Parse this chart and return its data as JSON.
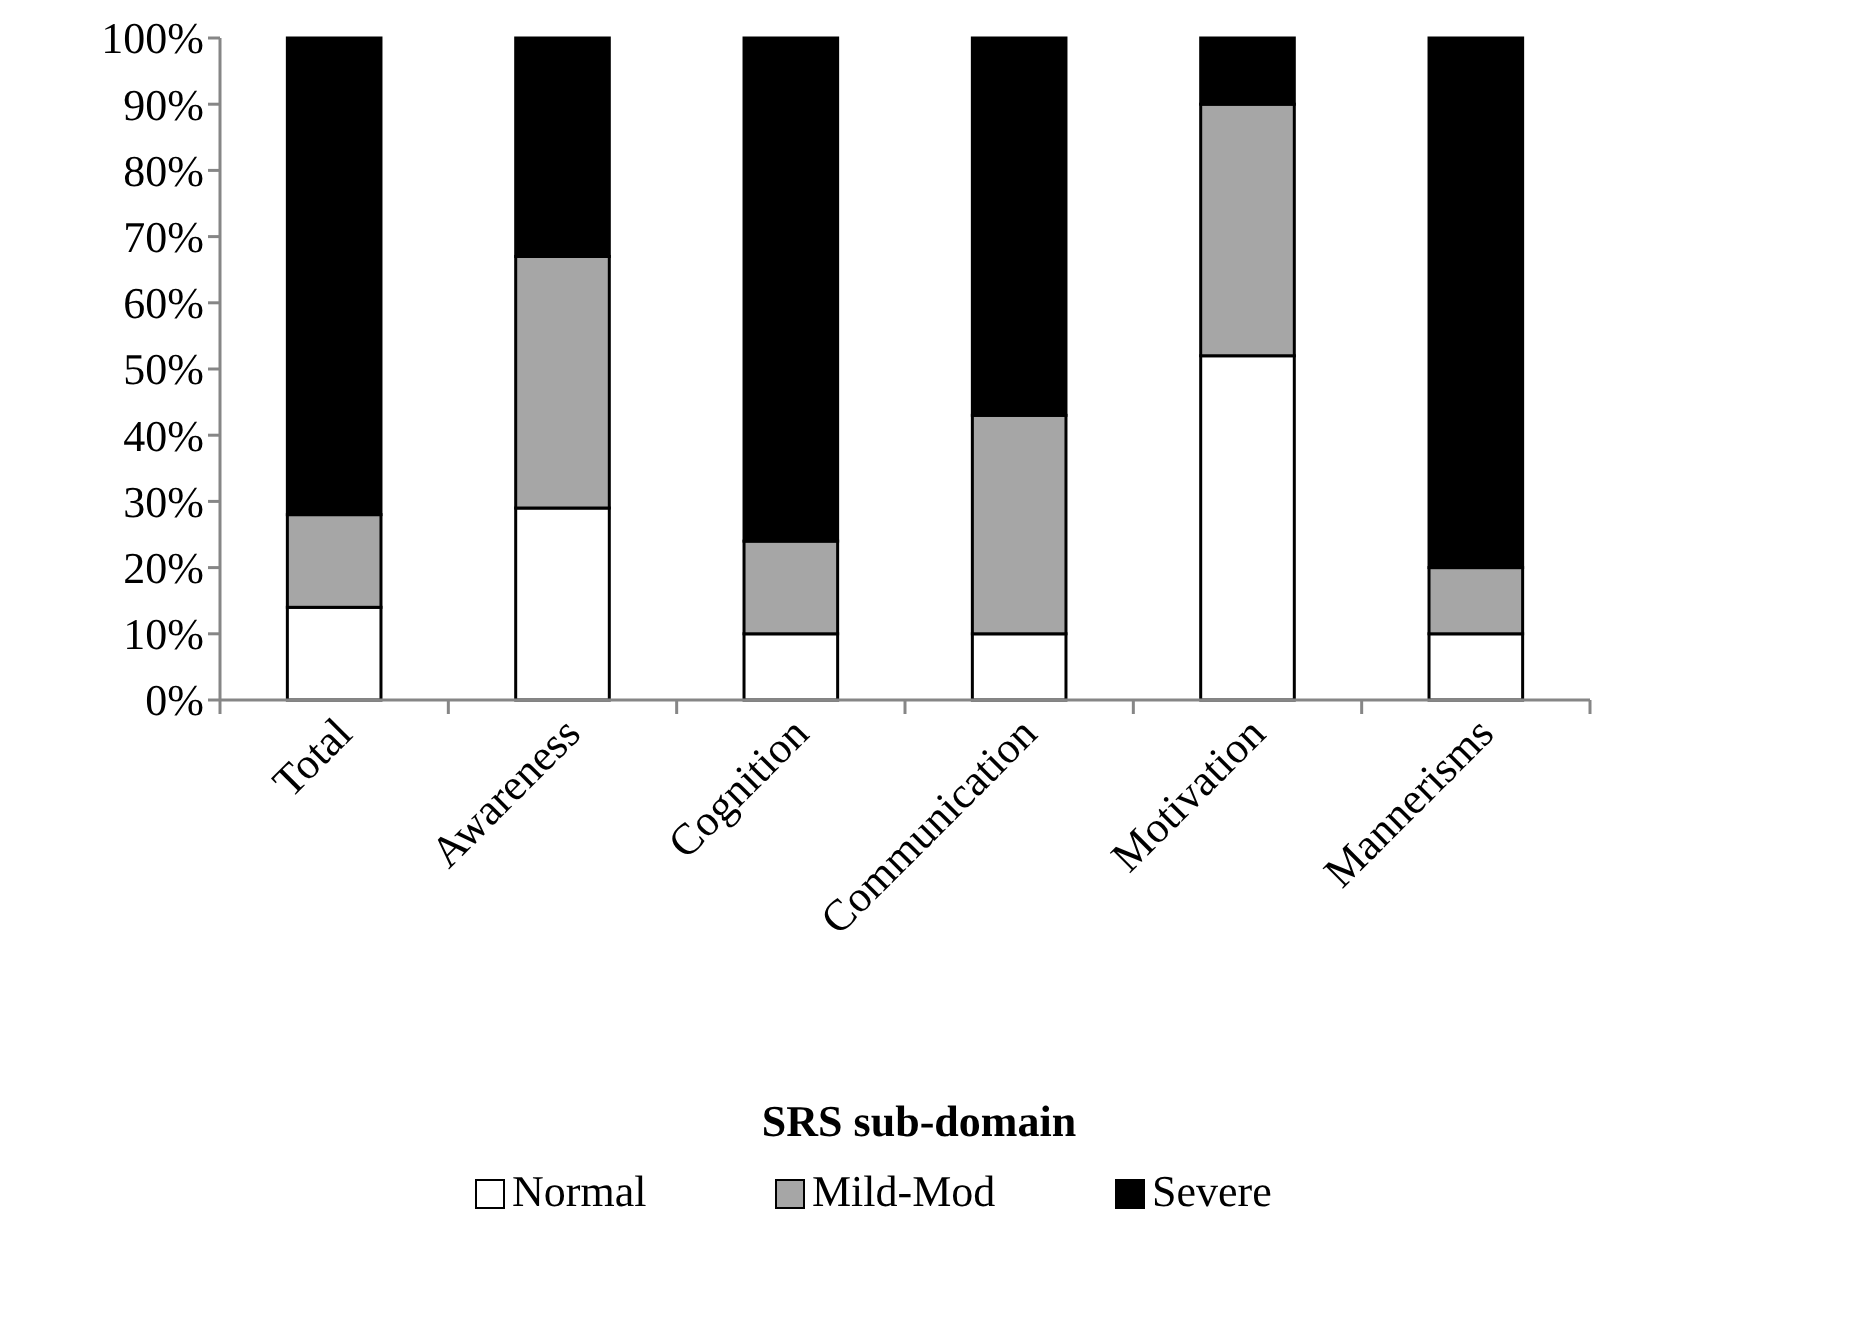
{
  "chart_data": {
    "type": "bar",
    "stacked": true,
    "xlabel": "SRS sub-domain",
    "categories": [
      "Total",
      "Awareness",
      "Cognition",
      "Communication",
      "Motivation",
      "Mannerisms"
    ],
    "series": [
      {
        "name": "Normal",
        "color": "#ffffff",
        "values": [
          14,
          29,
          10,
          10,
          52,
          10
        ]
      },
      {
        "name": "Mild-Mod",
        "color": "#a6a6a6",
        "values": [
          14,
          38,
          14,
          33,
          38,
          10
        ]
      },
      {
        "name": "Severe",
        "color": "#000000",
        "values": [
          72,
          33,
          76,
          57,
          10,
          80
        ]
      }
    ],
    "ylim": [
      0,
      100
    ],
    "yticks": [
      {
        "value": 0,
        "label": "0%"
      },
      {
        "value": 10,
        "label": "10%"
      },
      {
        "value": 20,
        "label": "20%"
      },
      {
        "value": 30,
        "label": "30%"
      },
      {
        "value": 40,
        "label": "40%"
      },
      {
        "value": 50,
        "label": "50%"
      },
      {
        "value": 60,
        "label": "60%"
      },
      {
        "value": 70,
        "label": "70%"
      },
      {
        "value": 80,
        "label": "80%"
      },
      {
        "value": 90,
        "label": "90%"
      },
      {
        "value": 100,
        "label": "100%"
      }
    ],
    "grid": false,
    "legend": "bottom"
  }
}
